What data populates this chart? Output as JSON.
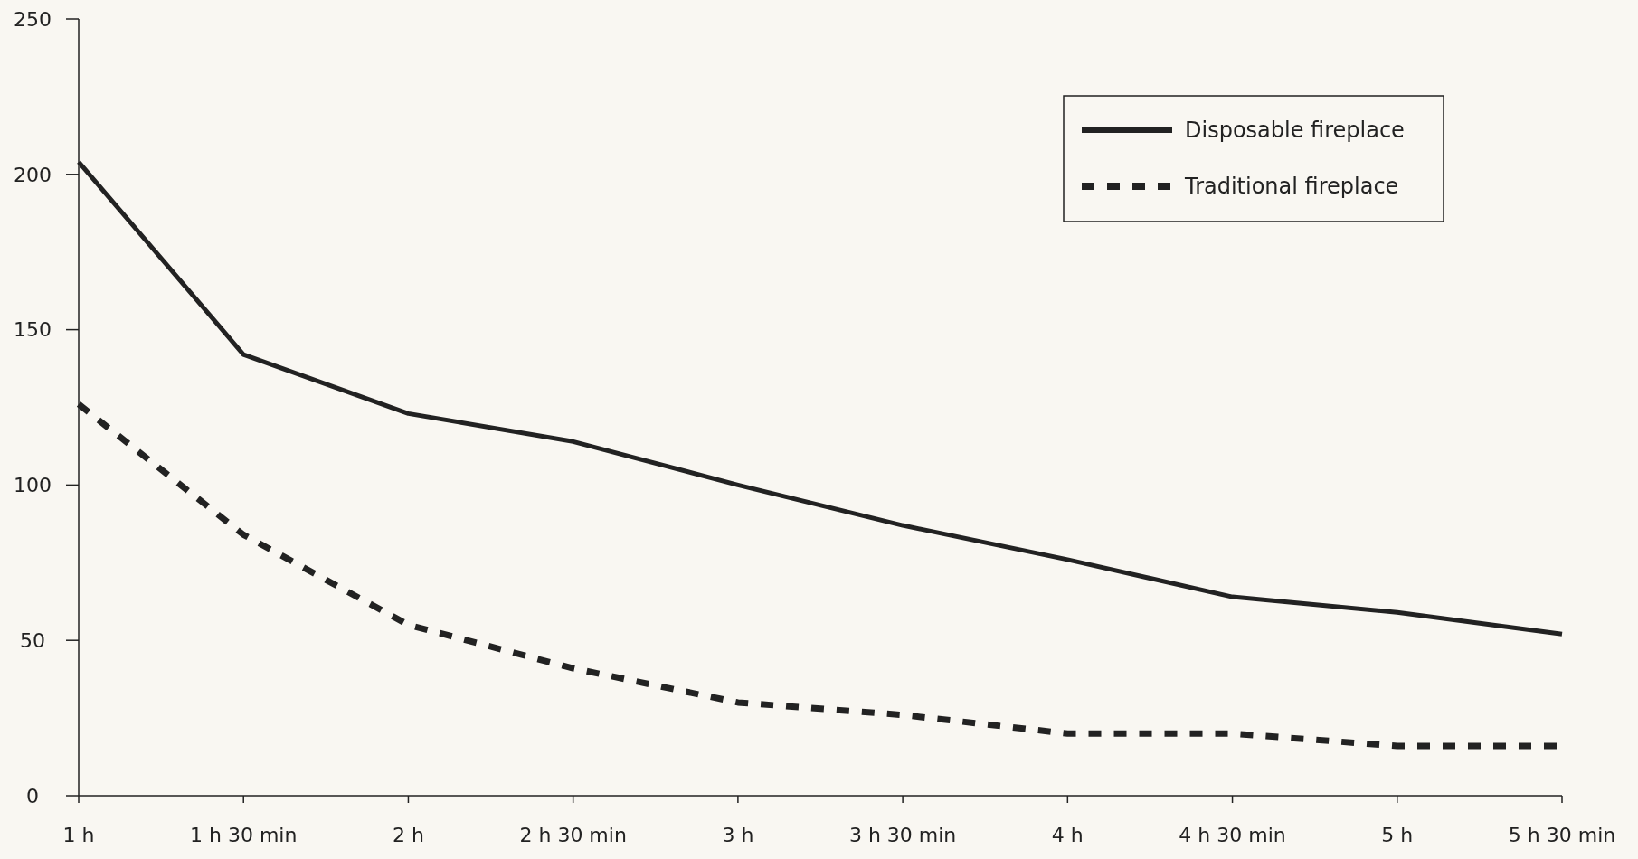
{
  "chart_data": {
    "type": "line",
    "categories": [
      "1 h",
      "1 h 30 min",
      "2 h",
      "2 h 30 min",
      "3 h",
      "3 h 30 min",
      "4 h",
      "4 h 30 min",
      "5 h",
      "5 h 30 min"
    ],
    "series": [
      {
        "name": "Disposable fireplace",
        "color": "#222222",
        "line_style": "solid",
        "values": [
          204,
          142,
          123,
          114,
          100,
          87,
          76,
          64,
          59,
          52
        ]
      },
      {
        "name": "Traditional fireplace",
        "color": "#222222",
        "line_style": "dashed",
        "values": [
          126,
          84,
          55,
          41,
          30,
          26,
          20,
          20,
          16,
          16
        ]
      }
    ],
    "ylim": [
      0,
      250
    ],
    "yticks": [
      0,
      50,
      100,
      150,
      200,
      250
    ],
    "grid": false,
    "legend": "top right",
    "marker": "none"
  }
}
